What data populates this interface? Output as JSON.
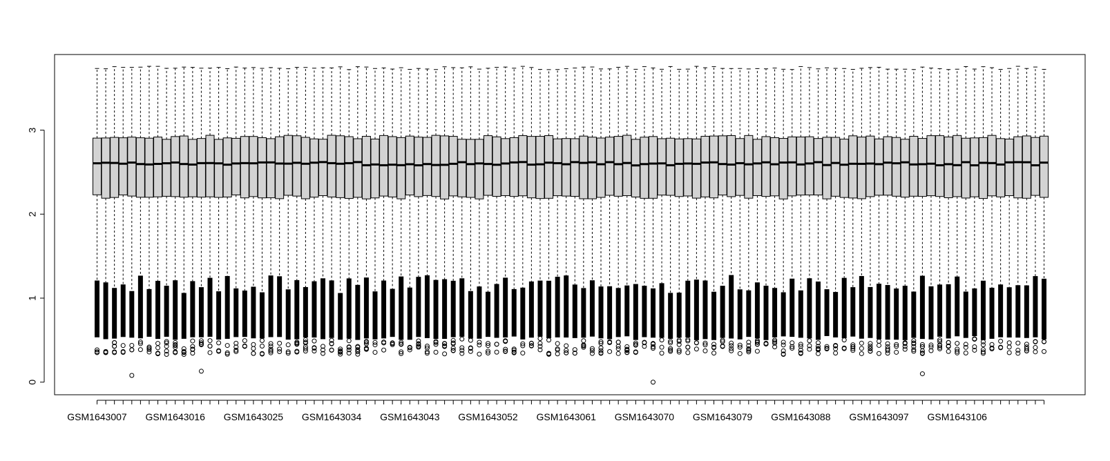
{
  "chart_data": {
    "type": "boxplot",
    "title": "",
    "xlabel": "",
    "ylabel": "",
    "ylim": [
      -0.15,
      3.9
    ],
    "yticks": [
      0,
      1,
      2,
      3
    ],
    "ytick_labels": [
      "0",
      "1",
      "2",
      "3"
    ],
    "sample_start": 1643007,
    "sample_prefix": "GSM",
    "n_samples": 110,
    "xtick_labels": [
      "GSM1643007",
      "GSM1643016",
      "GSM1643025",
      "GSM1643034",
      "GSM1643043",
      "GSM1643052",
      "GSM1643061",
      "GSM1643070",
      "GSM1643079",
      "GSM1643088",
      "GSM1643097",
      "GSM1643106"
    ],
    "typical_box": {
      "whisker_high": 3.76,
      "q3": 2.93,
      "median": 2.6,
      "q1": 2.21,
      "whisker_low": 1.15,
      "outliers_low_to": 0.35
    },
    "outlier_min_points": [
      {
        "sample": "GSM1643011",
        "value": 0.08
      },
      {
        "sample": "GSM1643019",
        "value": 0.13
      },
      {
        "sample": "GSM1643071",
        "value": 0.0
      },
      {
        "sample": "GSM1643102",
        "value": 0.1
      }
    ],
    "box_fill": "#d3d3d3",
    "box_stroke": "#000000",
    "grid": false,
    "legend": "none"
  }
}
